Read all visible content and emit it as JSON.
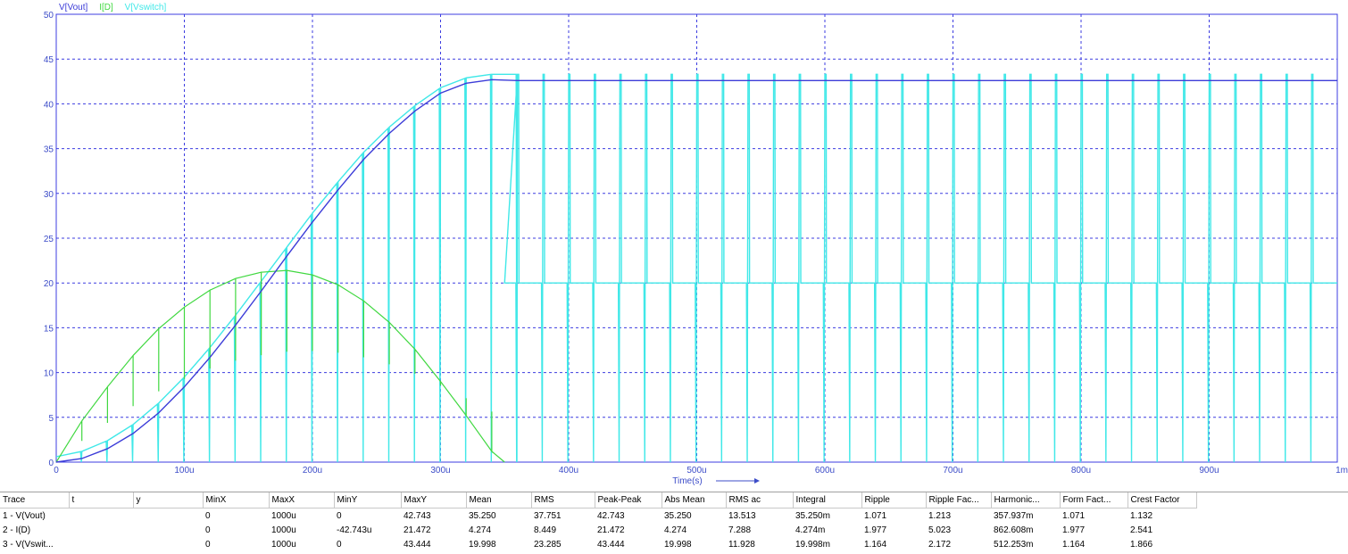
{
  "plot": {
    "legend": [
      {
        "label": "V[Vout]",
        "color": "#3c3cd8"
      },
      {
        "label": "I[D]",
        "color": "#40d840"
      },
      {
        "label": "V[Vswitch]",
        "color": "#40e8e8"
      }
    ],
    "x_axis_label": "Time(s)",
    "x_ticks": [
      "0",
      "100u",
      "200u",
      "300u",
      "400u",
      "500u",
      "600u",
      "700u",
      "800u",
      "900u",
      "1m"
    ],
    "y_ticks": [
      "0",
      "5",
      "10",
      "15",
      "20",
      "25",
      "30",
      "35",
      "40",
      "45",
      "50"
    ],
    "colors": {
      "grid": "#3c3ce0",
      "frame": "#3c3ce0",
      "axis_text": "#3c4cc8"
    }
  },
  "chart_data": {
    "type": "line",
    "xlim": [
      0,
      1000
    ],
    "x_unit": "u",
    "ylim": [
      0,
      50
    ],
    "grid": true,
    "legend_position": "top-left",
    "series": [
      {
        "name": "V[Vout]",
        "color": "#3c3cd8",
        "x": [
          0,
          20,
          40,
          60,
          80,
          100,
          120,
          140,
          160,
          180,
          200,
          220,
          240,
          260,
          280,
          300,
          320,
          340,
          360,
          1000
        ],
        "y": [
          0,
          0.4,
          1.5,
          3.2,
          5.5,
          8.4,
          11.7,
          15.3,
          19.1,
          23.0,
          26.8,
          30.4,
          33.8,
          36.7,
          39.2,
          41.2,
          42.3,
          42.7,
          42.6,
          42.6
        ]
      },
      {
        "name": "I[D]",
        "color": "#40d840",
        "x": [
          0,
          20,
          40,
          60,
          80,
          100,
          120,
          140,
          160,
          180,
          200,
          220,
          240,
          260,
          280,
          300,
          320,
          340,
          350
        ],
        "y": [
          0,
          4.6,
          8.4,
          11.9,
          14.9,
          17.3,
          19.2,
          20.5,
          21.2,
          21.4,
          20.9,
          19.8,
          18.0,
          15.6,
          12.6,
          9.0,
          5.2,
          1.2,
          0
        ]
      },
      {
        "name": "V[Vswitch]",
        "color": "#40e8e8",
        "x": [
          0,
          20,
          40,
          60,
          80,
          100,
          120,
          140,
          160,
          180,
          200,
          220,
          240,
          260,
          280,
          300,
          320,
          340
        ],
        "y": [
          0.6,
          1.2,
          2.4,
          4.2,
          6.6,
          9.5,
          12.8,
          16.4,
          20.2,
          24.0,
          27.8,
          31.3,
          34.6,
          37.4,
          39.8,
          41.8,
          42.9,
          43.3
        ],
        "pulse_period": 20,
        "pulse_high_after_settle": 43.3,
        "baseline_after_settle": 20.0,
        "settle_time": 350
      }
    ]
  },
  "table": {
    "headers": [
      "Trace",
      "t",
      "y",
      "MinX",
      "MaxX",
      "MinY",
      "MaxY",
      "Mean",
      "RMS",
      "Peak-Peak",
      "Abs Mean",
      "RMS ac",
      "Integral",
      "Ripple",
      "Ripple Fac...",
      "Harmonic...",
      "Form Fact...",
      "Crest Factor"
    ],
    "rows": [
      [
        "1 - V(Vout)",
        "",
        "",
        "0",
        "1000u",
        "0",
        "42.743",
        "35.250",
        "37.751",
        "42.743",
        "35.250",
        "13.513",
        "35.250m",
        "1.071",
        "1.213",
        "357.937m",
        "1.071",
        "1.132"
      ],
      [
        "2 - I(D)",
        "",
        "",
        "0",
        "1000u",
        "-42.743u",
        "21.472",
        "4.274",
        "8.449",
        "21.472",
        "4.274",
        "7.288",
        "4.274m",
        "1.977",
        "5.023",
        "862.608m",
        "1.977",
        "2.541"
      ],
      [
        "3 - V(Vswit...",
        "",
        "",
        "0",
        "1000u",
        "0",
        "43.444",
        "19.998",
        "23.285",
        "43.444",
        "19.998",
        "11.928",
        "19.998m",
        "1.164",
        "2.172",
        "512.253m",
        "1.164",
        "1.866"
      ]
    ]
  }
}
